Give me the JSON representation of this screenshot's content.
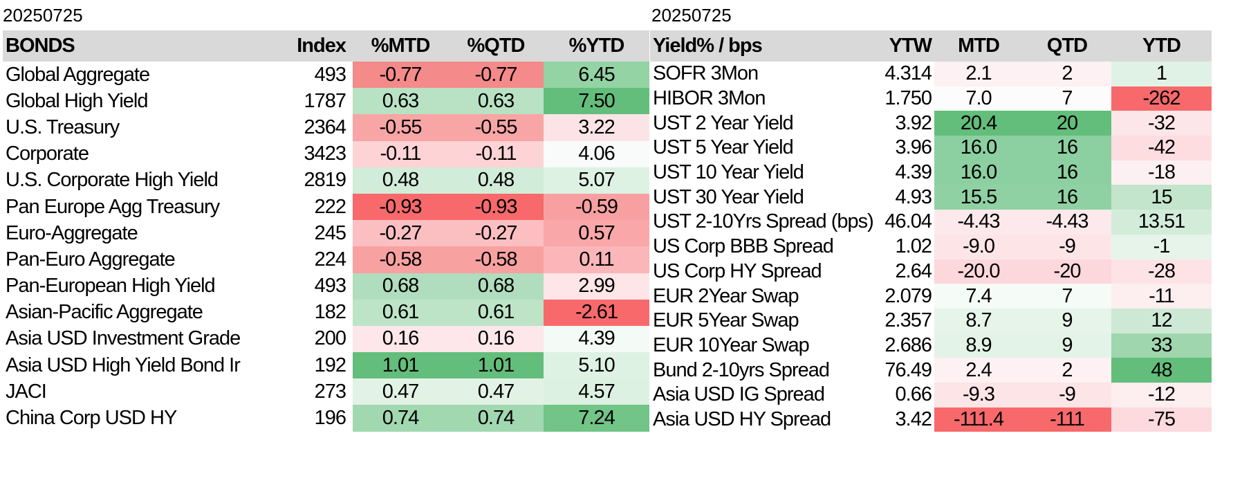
{
  "left": {
    "date": "20250725",
    "headers": [
      "BONDS",
      "Index",
      "%MTD",
      "%QTD",
      "%YTD"
    ],
    "rows": [
      [
        "Global Aggregate",
        "493",
        "-0.77",
        "-0.77",
        "6.45"
      ],
      [
        "Global High Yield",
        "1787",
        "0.63",
        "0.63",
        "7.50"
      ],
      [
        "U.S. Treasury",
        "2364",
        "-0.55",
        "-0.55",
        "3.22"
      ],
      [
        "Corporate",
        "3423",
        "-0.11",
        "-0.11",
        "4.06"
      ],
      [
        "U.S. Corporate High Yield",
        "2819",
        "0.48",
        "0.48",
        "5.07"
      ],
      [
        "Pan Europe Agg Treasury",
        "222",
        "-0.93",
        "-0.93",
        "-0.59"
      ],
      [
        "Euro-Aggregate",
        "245",
        "-0.27",
        "-0.27",
        "0.57"
      ],
      [
        "Pan-Euro Aggregate",
        "224",
        "-0.58",
        "-0.58",
        "0.11"
      ],
      [
        "Pan-European High Yield",
        "493",
        "0.68",
        "0.68",
        "2.99"
      ],
      [
        "Asian-Pacific Aggregate",
        "182",
        "0.61",
        "0.61",
        "-2.61"
      ],
      [
        "Asia USD Investment Grade",
        "200",
        "0.16",
        "0.16",
        "4.39"
      ],
      [
        "Asia USD High Yield Bond Ir",
        "192",
        "1.01",
        "1.01",
        "5.10"
      ],
      [
        "JACI",
        "273",
        "0.47",
        "0.47",
        "4.57"
      ],
      [
        "China Corp USD HY",
        "196",
        "0.74",
        "0.74",
        "7.24"
      ]
    ],
    "colors": [
      [
        null,
        null,
        "#f58a8a",
        "#f58a8a",
        "#93d3a4"
      ],
      [
        null,
        null,
        "#b9e2c4",
        "#b9e2c4",
        "#63be7b"
      ],
      [
        null,
        null,
        "#f8a5a5",
        "#f8a5a5",
        "#fce4e6"
      ],
      [
        null,
        null,
        "#fdd3d6",
        "#fdd3d6",
        "#f8fbfa"
      ],
      [
        null,
        null,
        "#d1ecd8",
        "#d1ecd8",
        "#def2e3"
      ],
      [
        null,
        null,
        "#f8696b",
        "#f8696b",
        "#f8a0a1"
      ],
      [
        null,
        null,
        "#fbbfc2",
        "#fbbfc2",
        "#f9a7a8"
      ],
      [
        null,
        null,
        "#f8a1a1",
        "#f8a1a1",
        "#fab6b8"
      ],
      [
        null,
        null,
        "#b0ddbd",
        "#b0ddbd",
        "#fde5e8"
      ],
      [
        null,
        null,
        "#bde4c7",
        "#bde4c7",
        "#f8696b"
      ],
      [
        null,
        null,
        "#fde7ea",
        "#fde7ea",
        "#f4faf6"
      ],
      [
        null,
        null,
        "#63be7b",
        "#63be7b",
        "#def2e3"
      ],
      [
        null,
        null,
        "#e2f3e6",
        "#e2f3e6",
        "#ddf1e2"
      ],
      [
        null,
        null,
        "#a1d8b0",
        "#a1d8b0",
        "#72c487"
      ]
    ]
  },
  "right": {
    "date": "20250725",
    "headers": [
      "Yield% / bps",
      "YTW",
      "MTD",
      "QTD",
      "YTD"
    ],
    "rows": [
      [
        "SOFR 3Mon",
        "4.314",
        "2.1",
        "2",
        "1"
      ],
      [
        "HIBOR 3Mon",
        "1.750",
        "7.0",
        "7",
        "-262"
      ],
      [
        "UST 2 Year Yield",
        "3.92",
        "20.4",
        "20",
        "-32"
      ],
      [
        "UST 5 Year Yield",
        "3.96",
        "16.0",
        "16",
        "-42"
      ],
      [
        "UST 10 Year Yield",
        "4.39",
        "16.0",
        "16",
        "-18"
      ],
      [
        "UST 30 Year Yield",
        "4.93",
        "15.5",
        "16",
        "15"
      ],
      [
        "UST 2-10Yrs Spread (bps)",
        "46.04",
        "-4.43",
        "-4.43",
        "13.51"
      ],
      [
        "US Corp BBB Spread",
        "1.02",
        "-9.0",
        "-9",
        "-1"
      ],
      [
        "US Corp HY Spread",
        "2.64",
        "-20.0",
        "-20",
        "-28"
      ],
      [
        "EUR 2Year Swap",
        "2.079",
        "7.4",
        "7",
        "-11"
      ],
      [
        "EUR 5Year Swap",
        "2.357",
        "8.7",
        "9",
        "12"
      ],
      [
        "EUR 10Year Swap",
        "2.686",
        "8.9",
        "9",
        "33"
      ],
      [
        "Bund 2-10yrs Spread",
        "76.49",
        "2.4",
        "2",
        "48"
      ],
      [
        "Asia USD IG Spread",
        "0.66",
        "-9.3",
        "-9",
        "-12"
      ],
      [
        "Asia USD HY Spread",
        "3.42",
        "-111.4",
        "-111",
        "-75"
      ]
    ],
    "colors": [
      [
        null,
        null,
        "#fdf1f3",
        "#fdf1f3",
        "#e0f2e5"
      ],
      [
        null,
        null,
        "#fbfcfb",
        "#fbfcfb",
        "#f8696b"
      ],
      [
        null,
        null,
        "#63be7b",
        "#63be7b",
        "#fde6e9"
      ],
      [
        null,
        null,
        "#8ccfa0",
        "#8ccfa0",
        "#fddde0"
      ],
      [
        null,
        null,
        "#8ccfa0",
        "#8ccfa0",
        "#fdf0f2"
      ],
      [
        null,
        null,
        "#90d1a3",
        "#90d1a3",
        "#c2e5cc"
      ],
      [
        null,
        null,
        "#fde9ec",
        "#fde9ec",
        "#d2ecd9"
      ],
      [
        null,
        null,
        "#fde4e7",
        "#fde4e7",
        "#e6f4ea"
      ],
      [
        null,
        null,
        "#fcd7db",
        "#fcd7db",
        "#fde3e6"
      ],
      [
        null,
        null,
        "#f5fbf7",
        "#f5fbf7",
        "#fdeef0"
      ],
      [
        null,
        null,
        "#e6f4ea",
        "#e6f4ea",
        "#cde9d5"
      ],
      [
        null,
        null,
        "#e3f3e7",
        "#e3f3e7",
        "#9fd6ae"
      ],
      [
        null,
        null,
        "#fdf1f3",
        "#fdf1f3",
        "#63be7b"
      ],
      [
        null,
        null,
        "#fde4e7",
        "#fde4e7",
        "#fdeef0"
      ],
      [
        null,
        null,
        "#f8696b",
        "#f8696b",
        "#fcdadd"
      ]
    ]
  }
}
